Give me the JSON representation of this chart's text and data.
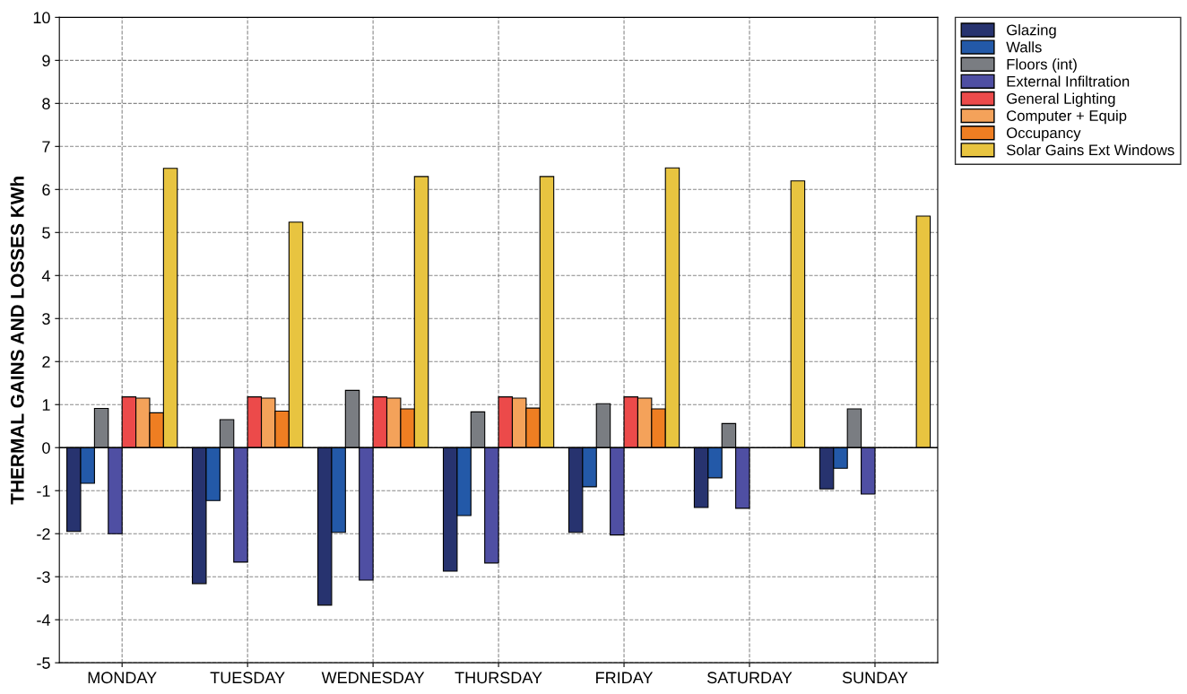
{
  "chart_data": {
    "type": "bar",
    "ylabel": "THERMAL GAINS AND LOSSES KWh",
    "categories": [
      "MONDAY",
      "TUESDAY",
      "WEDNESDAY",
      "THURSDAY",
      "FRIDAY",
      "SATURDAY",
      "SUNDAY"
    ],
    "series": [
      {
        "name": "Glazing",
        "color": "#27336f",
        "values": [
          -1.95,
          -3.16,
          -3.66,
          -2.87,
          -1.97,
          -1.39,
          -0.96
        ]
      },
      {
        "name": "Walls",
        "color": "#2359a8",
        "values": [
          -0.83,
          -1.23,
          -1.97,
          -1.58,
          -0.91,
          -0.7,
          -0.48
        ]
      },
      {
        "name": "Floors (int)",
        "color": "#7a7d82",
        "values": [
          0.91,
          0.65,
          1.33,
          0.83,
          1.02,
          0.56,
          0.9
        ]
      },
      {
        "name": "External Infiltration",
        "color": "#4f4fa3",
        "values": [
          -2.0,
          -2.66,
          -3.08,
          -2.68,
          -2.03,
          -1.41,
          -1.08
        ]
      },
      {
        "name": "General Lighting",
        "color": "#ec4a4a",
        "values": [
          1.18,
          1.18,
          1.18,
          1.18,
          1.18,
          null,
          null
        ]
      },
      {
        "name": "Computer + Equip",
        "color": "#f4a25a",
        "values": [
          1.15,
          1.15,
          1.15,
          1.15,
          1.15,
          null,
          null
        ]
      },
      {
        "name": "Occupancy",
        "color": "#ef7e22",
        "values": [
          0.81,
          0.85,
          0.9,
          0.92,
          0.9,
          null,
          null
        ]
      },
      {
        "name": "Solar Gains Ext Windows",
        "color": "#e8c440",
        "values": [
          6.49,
          5.24,
          6.3,
          6.3,
          6.5,
          6.2,
          5.38
        ]
      }
    ],
    "ylim": [
      -5,
      10
    ],
    "yticks": [
      -5,
      -4,
      -3,
      -2,
      -1,
      0,
      1,
      2,
      3,
      4,
      5,
      6,
      7,
      8,
      9,
      10
    ],
    "ref_lines": [
      {
        "axis": "y",
        "value": 0,
        "color": "#000000",
        "line_style": "solid"
      }
    ],
    "grid": true,
    "legend": "top right"
  }
}
